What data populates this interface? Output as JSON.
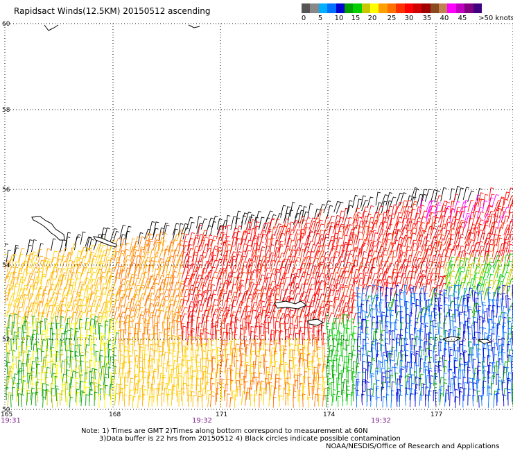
{
  "title": "Rapidsact Winds(12.5KM) 20150512 ascending",
  "legend": {
    "labels": [
      "0",
      "5",
      "10",
      "15",
      "20",
      "25",
      "30",
      "35",
      "40",
      "45",
      ">50 knots"
    ],
    "colors": [
      "#555555",
      "#888888",
      "#00b0ff",
      "#0070ff",
      "#0000d0",
      "#00a000",
      "#00d000",
      "#c8c800",
      "#ffff00",
      "#ffa000",
      "#ff7000",
      "#ff3000",
      "#ff0000",
      "#d00000",
      "#a00000",
      "#8a4a20",
      "#c08050",
      "#ff00ff",
      "#c000c0",
      "#800080",
      "#400080"
    ]
  },
  "map": {
    "lat_labels": [
      "60",
      "58",
      "56",
      "54",
      "52",
      "50"
    ],
    "lon_labels": [
      "165",
      "168",
      "171",
      "174",
      "177"
    ],
    "time_labels": [
      "19:31",
      "19:32",
      "19:32"
    ]
  },
  "notes": {
    "line1": "Note: 1) Times are GMT 2)Times along bottom correspond to measurement at 60N",
    "line2": "3)Data buffer is 22 hrs from 20150512 4) Black circles indicate possible contamination",
    "line3": "NOAA/NESDIS/Office of Research and Applications"
  }
}
